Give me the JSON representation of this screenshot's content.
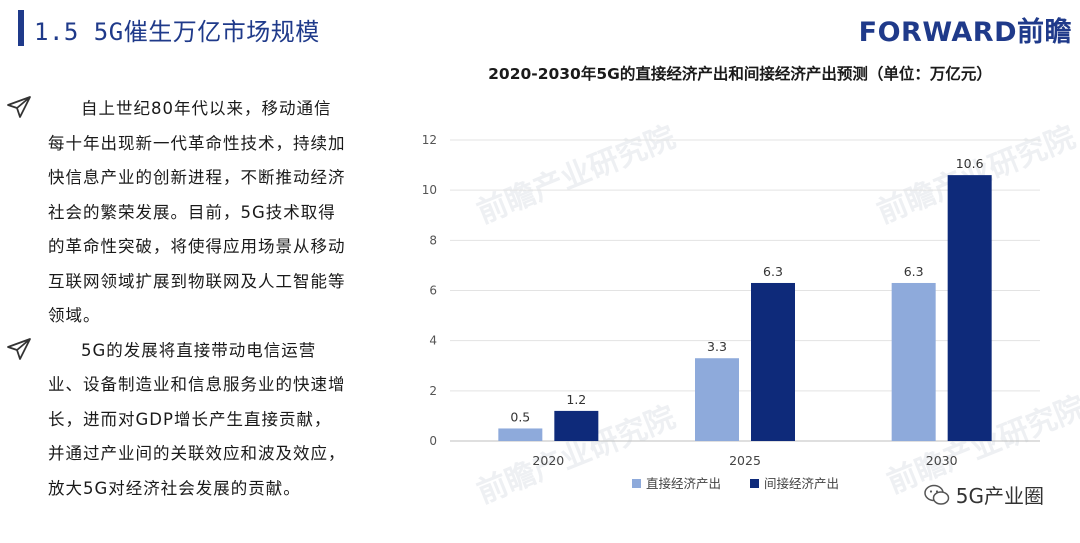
{
  "header": {
    "title": "1.5 5G催生万亿市场规模",
    "brand": "FORWARD前瞻"
  },
  "content": {
    "paragraphs": [
      "自上世纪80年代以来，移动通信每十年出现新一代革命性技术，持续加快信息产业的创新进程，不断推动经济社会的繁荣发展。目前，5G技术取得的革命性突破，将使得应用场景从移动互联网领域扩展到物联网及人工智能等领域。",
      "5G的发展将直接带动电信运营业、设备制造业和信息服务业的快速增长，进而对GDP增长产生直接贡献，并通过产业间的关联效应和波及效应，放大5G对经济社会发展的贡献。"
    ]
  },
  "watermark": {
    "text": "前瞻产业研究院"
  },
  "footer": {
    "wechat_label": "5G产业圈"
  },
  "colors": {
    "title_blue": "#1f3a8a",
    "series_direct": "#8eaadb",
    "series_indirect": "#0e2a7a"
  },
  "chart_data": {
    "type": "bar",
    "title": "2020-2030年5G的直接经济产出和间接经济产出预测（单位：万亿元）",
    "categories": [
      "2020",
      "2025",
      "2030"
    ],
    "series": [
      {
        "name": "直接经济产出",
        "values": [
          0.5,
          3.3,
          6.3
        ],
        "color": "#8eaadb"
      },
      {
        "name": "间接经济产出",
        "values": [
          1.2,
          6.3,
          10.6
        ],
        "color": "#0e2a7a"
      }
    ],
    "ylim": [
      0,
      12
    ],
    "yticks": [
      0,
      2,
      4,
      6,
      8,
      10,
      12
    ],
    "grid": true,
    "legend": "bottom"
  }
}
